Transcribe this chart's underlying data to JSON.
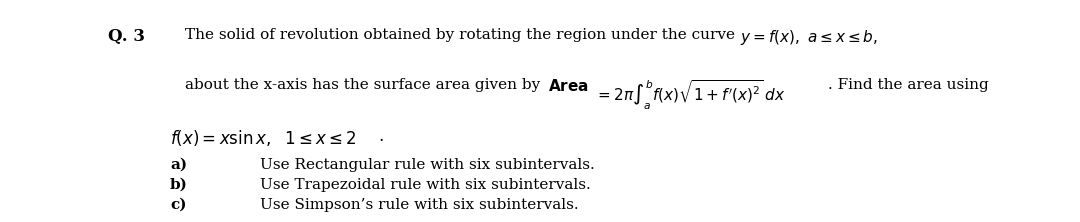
{
  "background_color": "#ffffff",
  "figsize": [
    10.8,
    2.22
  ],
  "dpi": 100,
  "question_label": "Q. 3",
  "line1_plain": "The solid of revolution obtained by rotating the region under the curve ",
  "line1_math": "$y = f(x),\\ a \\leq x \\leq b,$",
  "line2_plain": "about the x-axis has the surface area given by ",
  "line2_area": "$\\mathbf{Area}$",
  "line2_eq": "$= 2\\pi\\int_a^b f(x)\\sqrt{1+f'(x)^2}\\,dx$",
  "line2_suffix": ". Find the area using",
  "line3_math": "$f(x) = x\\sin x,\\ \\ 1 \\leq x \\leq 2$",
  "line3_dot": ".",
  "item_a_label": "a)",
  "item_a_text": "Use Rectangular rule with six subintervals.",
  "item_b_label": "b)",
  "item_b_text": "Use Trapezoidal rule with six subintervals.",
  "item_c_label": "c)",
  "item_c_text": "Use Simpson’s rule with six subintervals.",
  "fs": 11,
  "fs_q": 12,
  "fs_f": 12,
  "text_color": "#000000"
}
